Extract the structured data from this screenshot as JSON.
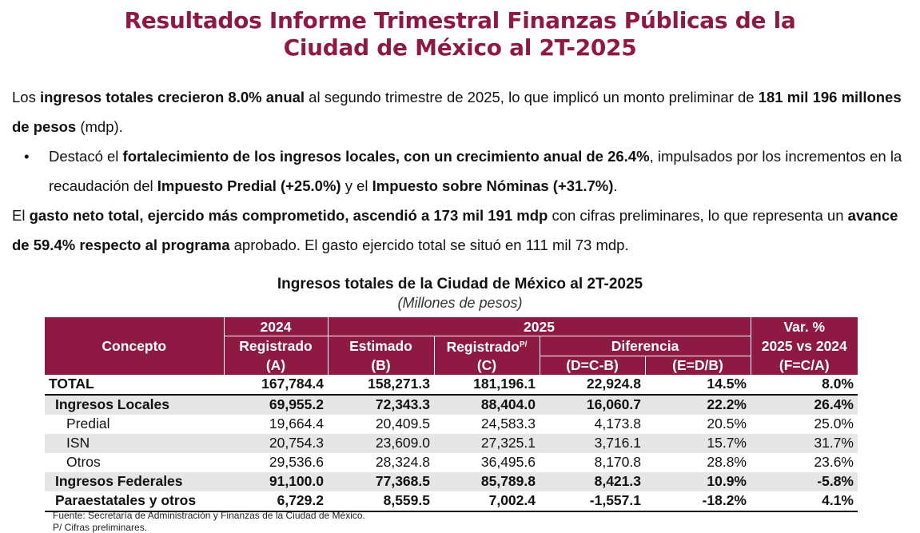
{
  "title": {
    "line1": "Resultados Informe Trimestral Finanzas Públicas de la",
    "line2": "Ciudad de México al 2T-2025"
  },
  "paragraph1": {
    "t1": "Los ",
    "b1": "ingresos totales crecieron 8.0% anual",
    "t2": " al segundo trimestre de 2025, lo que implicó un monto preliminar de ",
    "b2": "181 mil 196 millones de pesos",
    "t3": " (mdp)."
  },
  "bullet": {
    "marker": "•",
    "t1": "Destacó el ",
    "b1": "fortalecimiento de los ingresos locales, con un crecimiento anual de 26.4%",
    "t2": ", impulsados por los incrementos en la recaudación del ",
    "b2": "Impuesto Predial (+25.0%)",
    "t3": " y el ",
    "b3": "Impuesto sobre Nóminas (+31.7%)",
    "t4": "."
  },
  "paragraph2": {
    "t1": "El ",
    "b1": "gasto neto total, ejercido más comprometido, ascendió a 173 mil 191 mdp",
    "t2": " con cifras preliminares, lo que representa un ",
    "b2": "avance de 59.4% respecto al programa",
    "t3": " aprobado. El gasto ejercido total se situó en 111 mil 73 mdp."
  },
  "table": {
    "caption": "Ingresos totales de la Ciudad de México al 2T-2025",
    "subcaption": "(Millones de pesos)",
    "header": {
      "concepto": "Concepto",
      "y2024": "2024",
      "y2025": "2025",
      "var_top": "Var. %",
      "registrado_2024": "Registrado",
      "estimado": "Estimado",
      "registrado_2025": "Registrado",
      "registrado_sup": "P/",
      "diferencia": "Diferencia",
      "var_sub": "2025 vs 2024",
      "a": "(A)",
      "b": "(B)",
      "c": "(C)",
      "d": "(D=C-B)",
      "e": "(E=D/B)",
      "f": "(F=C/A)"
    },
    "rows": [
      {
        "concepto": "TOTAL",
        "a": "167,784.4",
        "b": "158,271.3",
        "c": "181,196.1",
        "d": "22,924.8",
        "e": "14.5%",
        "f": "8.0%"
      },
      {
        "concepto": "Ingresos Locales",
        "a": "69,955.2",
        "b": "72,343.3",
        "c": "88,404.0",
        "d": "16,060.7",
        "e": "22.2%",
        "f": "26.4%"
      },
      {
        "concepto": "Predial",
        "a": "19,664.4",
        "b": "20,409.5",
        "c": "24,583.3",
        "d": "4,173.8",
        "e": "20.5%",
        "f": "25.0%"
      },
      {
        "concepto": "ISN",
        "a": "20,754.3",
        "b": "23,609.0",
        "c": "27,325.1",
        "d": "3,716.1",
        "e": "15.7%",
        "f": "31.7%"
      },
      {
        "concepto": "Otros",
        "a": "29,536.6",
        "b": "28,324.8",
        "c": "36,495.6",
        "d": "8,170.8",
        "e": "28.8%",
        "f": "23.6%"
      },
      {
        "concepto": "Ingresos Federales",
        "a": "91,100.0",
        "b": "77,368.5",
        "c": "85,789.8",
        "d": "8,421.3",
        "e": "10.9%",
        "f": "-5.8%"
      },
      {
        "concepto": "Paraestatales y otros",
        "a": "6,729.2",
        "b": "8,559.5",
        "c": "7,002.4",
        "d": "-1,557.1",
        "e": "-18.2%",
        "f": "4.1%"
      }
    ],
    "source": "Fuente: Secretaría de Administración y Finanzas de la Ciudad de México.",
    "note": "P/ Cifras preliminares."
  },
  "colors": {
    "brand": "#8e1a44",
    "row_shade": "#e6e6e6"
  }
}
